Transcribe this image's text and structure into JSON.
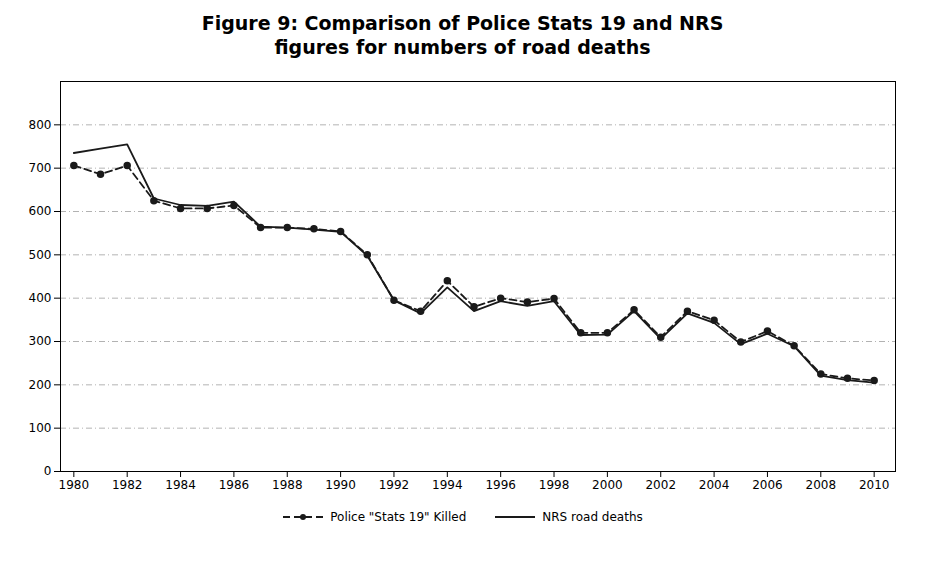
{
  "chart_data": {
    "type": "line",
    "title": "Figure 9: Comparison of Police Stats 19 and NRS\nfigures for numbers of road deaths",
    "x": [
      1980,
      1981,
      1982,
      1983,
      1984,
      1985,
      1986,
      1987,
      1988,
      1989,
      1990,
      1991,
      1992,
      1993,
      1994,
      1995,
      1996,
      1997,
      1998,
      1999,
      2000,
      2001,
      2002,
      2003,
      2004,
      2005,
      2006,
      2007,
      2008,
      2009,
      2010
    ],
    "series": [
      {
        "name": "Police \"Stats 19\" Killed",
        "color": "#1a1a1a",
        "marker": "circle",
        "line_style": "dashed",
        "values": [
          706,
          686,
          706,
          625,
          607,
          607,
          614,
          563,
          563,
          560,
          554,
          500,
          395,
          370,
          440,
          380,
          400,
          391,
          399,
          320,
          320,
          373,
          310,
          370,
          349,
          299,
          324,
          290,
          225,
          215,
          210
        ]
      },
      {
        "name": "NRS road deaths",
        "color": "#1a1a1a",
        "line_style": "solid",
        "values": [
          735,
          745,
          755,
          630,
          615,
          613,
          623,
          565,
          563,
          558,
          553,
          498,
          395,
          365,
          425,
          370,
          393,
          382,
          393,
          315,
          316,
          370,
          306,
          365,
          343,
          294,
          318,
          289,
          221,
          211,
          205
        ]
      }
    ],
    "xlim": [
      1979.5,
      2010.8
    ],
    "xticks": [
      1980,
      1982,
      1984,
      1986,
      1988,
      1990,
      1992,
      1994,
      1996,
      1998,
      2000,
      2002,
      2004,
      2006,
      2008,
      2010
    ],
    "ylim": [
      0,
      900
    ],
    "yticks": [
      0,
      100,
      200,
      300,
      400,
      500,
      600,
      700,
      800
    ],
    "grid": true,
    "legend": "bottom"
  }
}
